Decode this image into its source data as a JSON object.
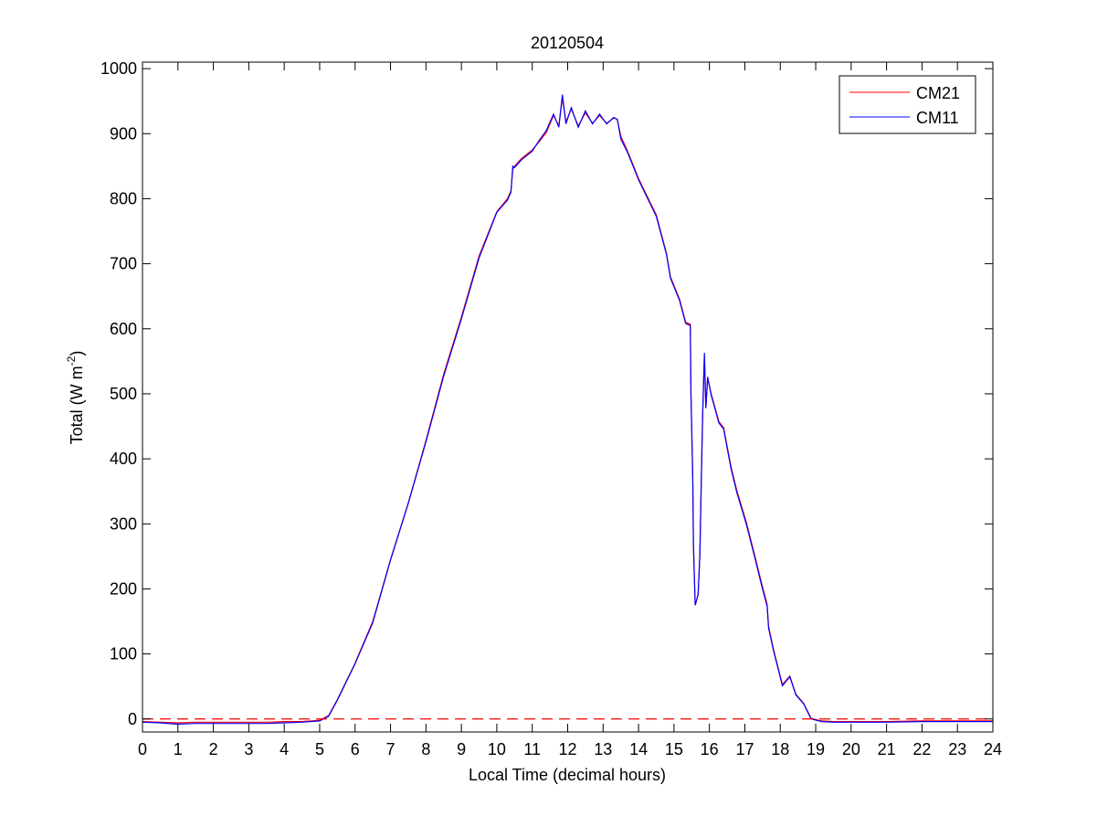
{
  "chart_data": {
    "type": "line",
    "title": "20120504",
    "xlabel": "Local Time (decimal hours)",
    "ylabel": {
      "text": "Total (W m",
      "sup": "-2",
      "close": ")"
    },
    "xlim": [
      0,
      24
    ],
    "ylim": [
      -20,
      1010
    ],
    "xticks": [
      0,
      1,
      2,
      3,
      4,
      5,
      6,
      7,
      8,
      9,
      10,
      11,
      12,
      13,
      14,
      15,
      16,
      17,
      18,
      19,
      20,
      21,
      22,
      23,
      24
    ],
    "yticks": [
      0,
      100,
      200,
      300,
      400,
      500,
      600,
      700,
      800,
      900,
      1000
    ],
    "grid": false,
    "legend_placement": "top-right",
    "reference_line": {
      "y": 0,
      "style": "dashed",
      "color": "#ff0000"
    },
    "x": [
      0,
      0.5,
      1,
      1.5,
      2,
      2.5,
      3,
      3.5,
      4,
      4.5,
      5,
      5.25,
      5.5,
      6,
      6.5,
      7,
      7.5,
      8,
      8.5,
      9,
      9.5,
      10,
      10.3,
      10.4,
      10.45,
      10.5,
      10.7,
      11,
      11.2,
      11.4,
      11.6,
      11.75,
      11.85,
      11.95,
      12.1,
      12.3,
      12.5,
      12.7,
      12.9,
      13.1,
      13.3,
      13.4,
      13.5,
      13.7,
      14,
      14.5,
      14.79,
      14.9,
      15.16,
      15.33,
      15.46,
      15.48,
      15.53,
      15.55,
      15.6,
      15.68,
      15.73,
      15.77,
      15.81,
      15.86,
      15.9,
      15.95,
      16.05,
      16.27,
      16.4,
      16.61,
      16.78,
      17.04,
      17.3,
      17.47,
      17.63,
      17.67,
      17.8,
      17.93,
      18.06,
      18.27,
      18.44,
      18.66,
      18.87,
      19.17,
      19.5,
      20,
      21,
      22,
      23,
      24
    ],
    "series": [
      {
        "name": "CM21",
        "color": "#ff0000",
        "values": [
          -4,
          -5,
          -6,
          -5,
          -5,
          -5,
          -5,
          -5,
          -4,
          -4,
          -2,
          5,
          30,
          86,
          150,
          245,
          332,
          428,
          530,
          618,
          712,
          780,
          800,
          812,
          845,
          850,
          862,
          875,
          888,
          902,
          928,
          912,
          955,
          918,
          938,
          912,
          932,
          916,
          928,
          916,
          924,
          922,
          896,
          872,
          831,
          775,
          716,
          680,
          645,
          610,
          607,
          498,
          375,
          267,
          175,
          191,
          252,
          361,
          469,
          558,
          478,
          524,
          500,
          457,
          448,
          388,
          350,
          303,
          247,
          209,
          176,
          143,
          109,
          81,
          53,
          66,
          38,
          24,
          1,
          -3,
          -4,
          -4,
          -4,
          -3,
          -3,
          -3
        ]
      },
      {
        "name": "CM11",
        "color": "#0000ff",
        "values": [
          -5,
          -6,
          -8,
          -7,
          -7,
          -7,
          -7,
          -7,
          -6,
          -5,
          -3,
          4,
          29,
          85,
          148,
          244,
          331,
          426,
          527,
          615,
          709,
          779,
          798,
          810,
          850,
          848,
          860,
          873,
          890,
          905,
          930,
          910,
          960,
          915,
          940,
          910,
          935,
          915,
          930,
          915,
          925,
          922,
          892,
          870,
          829,
          773,
          714,
          678,
          643,
          608,
          605,
          498,
          375,
          267,
          175,
          191,
          252,
          361,
          469,
          563,
          478,
          526,
          498,
          455,
          446,
          385,
          347,
          300,
          244,
          206,
          173,
          140,
          107,
          79,
          51,
          65,
          37,
          23,
          0,
          -4,
          -5,
          -5,
          -5,
          -4,
          -4,
          -4
        ]
      }
    ]
  }
}
